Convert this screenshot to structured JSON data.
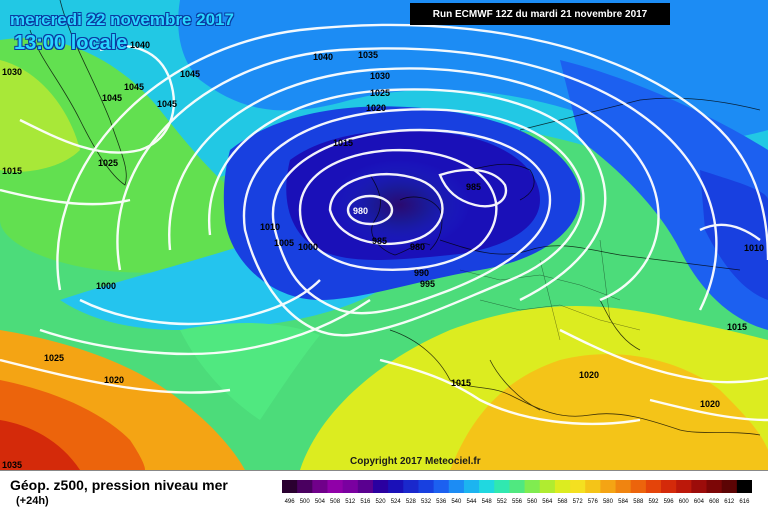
{
  "header": {
    "date": "mercredi 22 novembre 2017",
    "time": "13:00 locale",
    "run": "Run ECMWF 12Z du mardi 21 novembre 2017"
  },
  "copyright": "Copyright 2017 Meteociel.fr",
  "legend": {
    "title": "Géop. z500, pression niveau mer",
    "subtitle": "(+24h)",
    "values": [
      "496",
      "500",
      "504",
      "508",
      "512",
      "516",
      "520",
      "524",
      "528",
      "532",
      "536",
      "540",
      "544",
      "548",
      "552",
      "556",
      "560",
      "564",
      "568",
      "572",
      "576",
      "580",
      "584",
      "588",
      "592",
      "596",
      "600",
      "604",
      "608",
      "612",
      "616"
    ],
    "colors": [
      "#2a0030",
      "#4a0060",
      "#70008a",
      "#9000a8",
      "#7a00a0",
      "#5a0090",
      "#2a00a0",
      "#1a10b8",
      "#1a28cc",
      "#1840e0",
      "#1c60f0",
      "#1c8cf4",
      "#1cb4f0",
      "#20d8e0",
      "#30e8b0",
      "#50e880",
      "#80ec50",
      "#b0ec30",
      "#dcec20",
      "#f4e020",
      "#f4c418",
      "#f4a414",
      "#f08410",
      "#ec640c",
      "#e4440a",
      "#d42a0a",
      "#bc180a",
      "#9c0c0a",
      "#7c0606",
      "#5c0404",
      "#000000"
    ]
  },
  "isobars": [
    {
      "label": "1035",
      "tag": "c1035a"
    },
    {
      "label": "1040",
      "tag": "c1040a"
    },
    {
      "label": "1030",
      "tag": "c1030a"
    },
    {
      "label": "1025",
      "tag": "c1025a"
    },
    {
      "label": "1020",
      "tag": "c1020a"
    },
    {
      "label": "1015",
      "tag": "c1015a"
    },
    {
      "label": "1010",
      "tag": "c1010a"
    },
    {
      "label": "1005",
      "tag": "c1005a"
    },
    {
      "label": "1000",
      "tag": "c1000a"
    },
    {
      "label": "985",
      "tag": "c985a"
    },
    {
      "label": "980",
      "tag": "c980a"
    },
    {
      "label": "990",
      "tag": "c990a"
    },
    {
      "label": "995",
      "tag": "c995a"
    },
    {
      "label": "1045",
      "tag": "c1045a"
    },
    {
      "label": "1030",
      "tag": "c1030b"
    },
    {
      "label": "1015",
      "tag": "c1015b"
    },
    {
      "label": "1000",
      "tag": "c1000b"
    },
    {
      "label": "1025",
      "tag": "c1025b"
    },
    {
      "label": "1020",
      "tag": "c1020b"
    },
    {
      "label": "1015",
      "tag": "c1015c"
    },
    {
      "label": "1020",
      "tag": "c1020c"
    },
    {
      "label": "1010",
      "tag": "c1010b"
    },
    {
      "label": "1015",
      "tag": "c1015d"
    },
    {
      "label": "1020",
      "tag": "c1020d"
    },
    {
      "label": "1045",
      "tag": "c1045b"
    },
    {
      "label": "1045",
      "tag": "c1045c"
    },
    {
      "label": "1045",
      "tag": "c1045d"
    },
    {
      "label": "1040",
      "tag": "c1040b"
    },
    {
      "label": "1025",
      "tag": "c1025c"
    },
    {
      "label": "985",
      "tag": "c985b"
    },
    {
      "label": "1035",
      "tag": "c1035b"
    }
  ]
}
